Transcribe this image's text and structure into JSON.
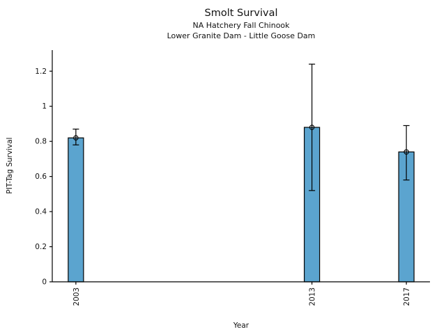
{
  "chart_data": {
    "type": "bar",
    "title": "Smolt Survival",
    "subtitle": [
      "NA Hatchery Fall Chinook",
      "Lower Granite Dam - Little Goose Dam"
    ],
    "xlabel": "Year",
    "ylabel": "PIT-Tag Survival",
    "categories": [
      "2003",
      "2013",
      "2017"
    ],
    "x_values": [
      2003,
      2013,
      2017
    ],
    "values": [
      0.82,
      0.88,
      0.74
    ],
    "error_low": [
      0.78,
      0.52,
      0.58
    ],
    "error_high": [
      0.87,
      1.24,
      0.89
    ],
    "xlim": [
      2002,
      2018
    ],
    "ylim": [
      0,
      1.32
    ],
    "y_tick_values": [
      0,
      0.2,
      0.4,
      0.6,
      0.8,
      1.0,
      1.2
    ],
    "y_tick_labels": [
      "0",
      "0.2",
      "0.4",
      "0.6",
      "0.8",
      "1",
      "1.2"
    ],
    "x_tick_rotation_deg": -90,
    "grid": false,
    "legend": "none",
    "bar_color": "#5BA4CF",
    "edge_color": "#000000",
    "marker": "open-circle",
    "error_caps": true
  }
}
